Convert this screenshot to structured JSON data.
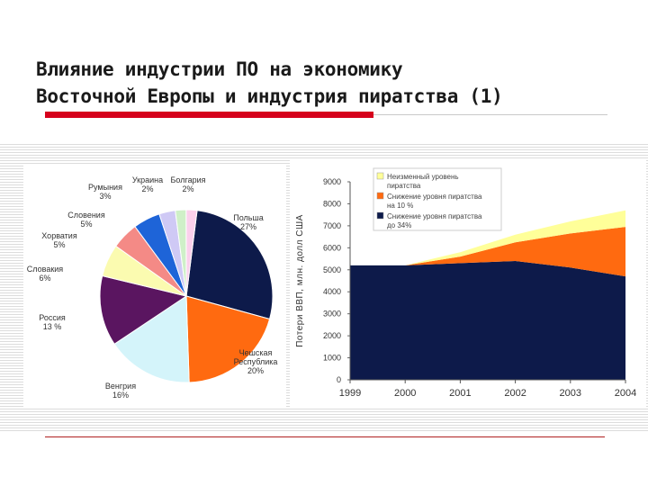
{
  "slide": {
    "title_line1": "Влияние индустрии ПО на экономику",
    "title_line2": "Восточной Европы и индустрия пиратства (1)"
  },
  "colors": {
    "accent_red": "#d6001c",
    "rule_gray": "#c9c9c9",
    "stripe": "#dcdcdc"
  },
  "chart_data": [
    {
      "type": "pie",
      "title": "",
      "slices": [
        {
          "name": "Польша",
          "label": "27%",
          "value": 27,
          "color": "#0d1a4a"
        },
        {
          "name": "Чешская Республика",
          "label": "20%",
          "value": 20,
          "color": "#ff6a10"
        },
        {
          "name": "Венгрия",
          "label": "16%",
          "value": 16,
          "color": "#d4f4fa"
        },
        {
          "name": "Россия",
          "label": "13 %",
          "value": 13,
          "color": "#5a1560"
        },
        {
          "name": "Словакия",
          "label": "6%",
          "value": 6,
          "color": "#fbfbb0"
        },
        {
          "name": "Хорватия",
          "label": "5%",
          "value": 5,
          "color": "#f48a86"
        },
        {
          "name": "Словения",
          "label": "5%",
          "value": 5,
          "color": "#1e64d8"
        },
        {
          "name": "Румыния",
          "label": "3%",
          "value": 3,
          "color": "#cfc9f5"
        },
        {
          "name": "Украина",
          "label": "2%",
          "value": 2,
          "color": "#cff0c8"
        },
        {
          "name": "Болгария",
          "label": "2%",
          "value": 2,
          "color": "#fbd0ec"
        }
      ]
    },
    {
      "type": "area",
      "title": "",
      "ylabel": "Потери ВВП, млн. долл США",
      "xlabel": "",
      "x": [
        "1999",
        "2000",
        "2001",
        "2002",
        "2003",
        "2004"
      ],
      "ylim": [
        0,
        9000
      ],
      "yticks": [
        "0",
        "1000",
        "2000",
        "3000",
        "4000",
        "5000",
        "6000",
        "7000",
        "8000",
        "9000"
      ],
      "series": [
        {
          "name": "Снижение уровня пиратства до 34%",
          "color": "#0d1a4a",
          "values": [
            5200,
            5200,
            5300,
            5400,
            5100,
            4700
          ]
        },
        {
          "name": "Снижение уровня пиратства на 10 %",
          "color": "#ff6a10",
          "values": [
            0,
            0,
            300,
            850,
            1550,
            2250
          ]
        },
        {
          "name": "Неизменный уровень пиратства",
          "color": "#ffff99",
          "values": [
            0,
            0,
            200,
            350,
            550,
            750
          ]
        }
      ],
      "legend_lines": [
        [
          "Неизменный уровень",
          "пиратства"
        ],
        [
          "Снижение уровня пиратства",
          "на 10 %"
        ],
        [
          "Снижение уровня пиратства",
          "до 34%"
        ]
      ]
    }
  ]
}
